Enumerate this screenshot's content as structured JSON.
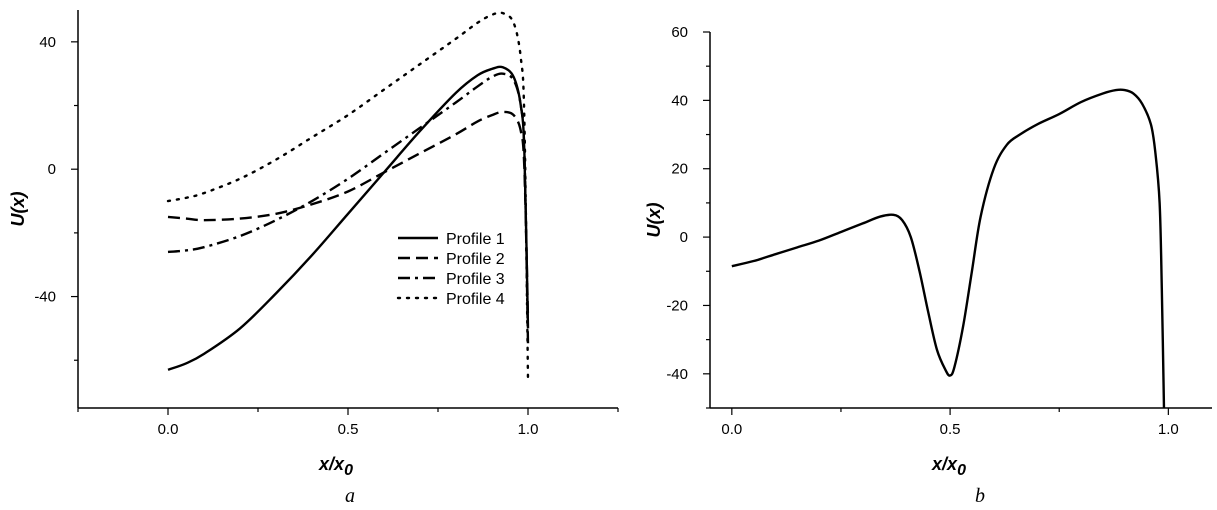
{
  "chart_data": [
    {
      "panel_label": "a",
      "type": "line",
      "xlabel": "x/x",
      "xlabel_sub": "0",
      "ylabel": "U(x)",
      "xlim": [
        -0.25,
        1.25
      ],
      "ylim": [
        -75,
        50
      ],
      "xticks": [
        "0.0",
        "0.5",
        "1.0"
      ],
      "xtick_values": [
        0,
        0.5,
        1.0
      ],
      "yticks": [
        "-40",
        "0",
        "40"
      ],
      "ytick_values": [
        -40,
        0,
        40
      ],
      "grid": false,
      "legend_position": "lower-right",
      "series": [
        {
          "name": "Profile 1",
          "style": "solid",
          "x": [
            0.0,
            0.05,
            0.1,
            0.2,
            0.3,
            0.4,
            0.5,
            0.6,
            0.7,
            0.8,
            0.86,
            0.9,
            0.93,
            0.96,
            0.98,
            0.99,
            1.0
          ],
          "y": [
            -63,
            -61,
            -58,
            -50,
            -39,
            -27,
            -14,
            -1,
            12,
            24,
            29.5,
            31.5,
            32,
            29,
            20,
            5,
            -50
          ]
        },
        {
          "name": "Profile 2",
          "style": "dashed",
          "x": [
            0.0,
            0.05,
            0.1,
            0.2,
            0.3,
            0.4,
            0.5,
            0.6,
            0.7,
            0.8,
            0.86,
            0.9,
            0.93,
            0.96,
            0.98,
            0.99,
            1.0
          ],
          "y": [
            -15,
            -15.5,
            -16,
            -15.5,
            -14,
            -11,
            -7,
            -1,
            5,
            11,
            15,
            17,
            18,
            17,
            12,
            0,
            -47
          ]
        },
        {
          "name": "Profile 3",
          "style": "dashdot",
          "x": [
            0.0,
            0.05,
            0.1,
            0.2,
            0.3,
            0.4,
            0.5,
            0.6,
            0.7,
            0.8,
            0.86,
            0.9,
            0.93,
            0.96,
            0.98,
            0.99,
            1.0
          ],
          "y": [
            -26,
            -25.5,
            -24.5,
            -21,
            -16,
            -10,
            -3,
            5,
            13,
            21,
            26,
            29,
            30,
            28,
            20,
            5,
            -55
          ]
        },
        {
          "name": "Profile 4",
          "style": "dotted",
          "x": [
            0.0,
            0.05,
            0.1,
            0.2,
            0.3,
            0.4,
            0.5,
            0.6,
            0.7,
            0.8,
            0.86,
            0.9,
            0.93,
            0.96,
            0.98,
            0.99,
            1.0
          ],
          "y": [
            -10,
            -9,
            -7.5,
            -3,
            3,
            10,
            17,
            25,
            33,
            41,
            46,
            48.5,
            49,
            46,
            35,
            15,
            -66
          ]
        }
      ]
    },
    {
      "panel_label": "b",
      "type": "line",
      "xlabel": "x/x",
      "xlabel_sub": "0",
      "ylabel": "U(x)",
      "xlim": [
        -0.05,
        1.1
      ],
      "ylim": [
        -50,
        60
      ],
      "xticks": [
        "0.0",
        "0.5",
        "1.0"
      ],
      "xtick_values": [
        0,
        0.5,
        1.0
      ],
      "yticks": [
        "60",
        "40",
        "20",
        "0",
        "-20",
        "-40"
      ],
      "ytick_values": [
        60,
        40,
        20,
        0,
        -20,
        -40
      ],
      "grid": false,
      "series": [
        {
          "style": "solid",
          "x": [
            0.0,
            0.05,
            0.1,
            0.15,
            0.2,
            0.25,
            0.3,
            0.34,
            0.37,
            0.39,
            0.41,
            0.43,
            0.45,
            0.47,
            0.49,
            0.5,
            0.51,
            0.53,
            0.55,
            0.57,
            0.6,
            0.63,
            0.66,
            0.7,
            0.75,
            0.8,
            0.85,
            0.88,
            0.9,
            0.92,
            0.94,
            0.96,
            0.97,
            0.98,
            0.985,
            0.99
          ],
          "y": [
            -8.5,
            -7,
            -5,
            -3,
            -1,
            1.5,
            4,
            6,
            6.5,
            5,
            0,
            -10,
            -22,
            -33,
            -39,
            -40.5,
            -38,
            -26,
            -10,
            6,
            20,
            27,
            30,
            33,
            36,
            39.5,
            42,
            43,
            43,
            42,
            39,
            33,
            25,
            10,
            -15,
            -50
          ]
        }
      ]
    }
  ]
}
